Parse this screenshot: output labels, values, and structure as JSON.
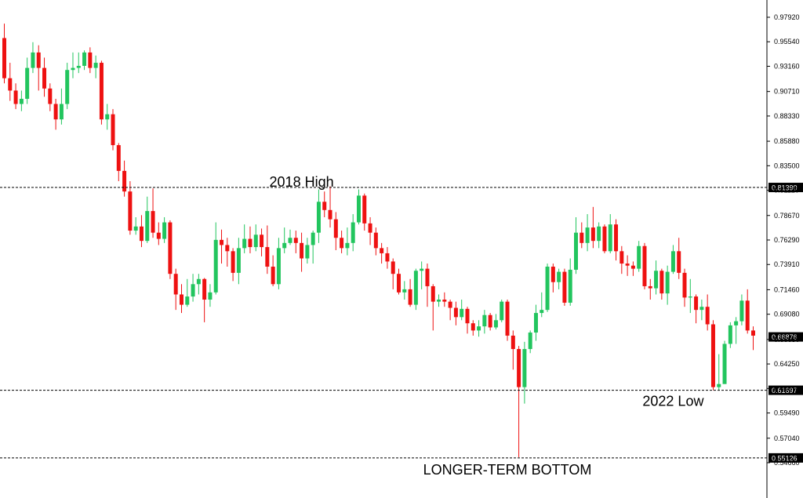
{
  "chart_data": {
    "type": "candlestick",
    "title": "",
    "xlabel": "",
    "ylabel": "",
    "ylim": [
      0.5466,
      0.9849
    ],
    "grid": false,
    "colors": {
      "up": "#22c55e",
      "down": "#ee1111",
      "wick_up": "#22c55e",
      "wick_down": "#ee1111",
      "level_line": "#000000",
      "marker_bg": "#000000",
      "marker_text": "#ffffff"
    },
    "y_ticks": [
      "0.97920",
      "0.95540",
      "0.93160",
      "0.90710",
      "0.88330",
      "0.85880",
      "0.83500",
      "0.81120",
      "0.78670",
      "0.76290",
      "0.73910",
      "0.71460",
      "0.69080",
      "0.66630",
      "0.64250",
      "0.61870",
      "0.59490",
      "0.57040",
      "0.54660"
    ],
    "levels": [
      {
        "value": 0.8139,
        "label": "0.81390",
        "annotation": "2018 High",
        "annotation_x_index": 52
      },
      {
        "value": 0.61697,
        "label": "0.61697",
        "annotation": "2022 Low",
        "annotation_x_index": 117
      },
      {
        "value": 0.55126,
        "label": "0.55126",
        "annotation": "LONGER-TERM BOTTOM",
        "annotation_x_index": 88
      }
    ],
    "current_price": {
      "value": 0.66876,
      "label": "0.66876"
    },
    "candles": [
      [
        0.959,
        0.92,
        0.973,
        0.915
      ],
      [
        0.92,
        0.908,
        0.935,
        0.898
      ],
      [
        0.908,
        0.895,
        0.915,
        0.89
      ],
      [
        0.895,
        0.9,
        0.908,
        0.888
      ],
      [
        0.9,
        0.93,
        0.94,
        0.895
      ],
      [
        0.93,
        0.945,
        0.955,
        0.925
      ],
      [
        0.945,
        0.93,
        0.952,
        0.908
      ],
      [
        0.93,
        0.91,
        0.94,
        0.902
      ],
      [
        0.91,
        0.895,
        0.915,
        0.888
      ],
      [
        0.895,
        0.88,
        0.9,
        0.87
      ],
      [
        0.88,
        0.895,
        0.91,
        0.875
      ],
      [
        0.895,
        0.928,
        0.935,
        0.89
      ],
      [
        0.928,
        0.93,
        0.945,
        0.92
      ],
      [
        0.93,
        0.932,
        0.945,
        0.925
      ],
      [
        0.932,
        0.945,
        0.947,
        0.928
      ],
      [
        0.945,
        0.93,
        0.95,
        0.925
      ],
      [
        0.93,
        0.935,
        0.942,
        0.92
      ],
      [
        0.935,
        0.88,
        0.937,
        0.875
      ],
      [
        0.88,
        0.885,
        0.895,
        0.87
      ],
      [
        0.885,
        0.855,
        0.89,
        0.85
      ],
      [
        0.855,
        0.83,
        0.857,
        0.82
      ],
      [
        0.83,
        0.81,
        0.84,
        0.805
      ],
      [
        0.81,
        0.772,
        0.82,
        0.768
      ],
      [
        0.772,
        0.776,
        0.785,
        0.768
      ],
      [
        0.776,
        0.762,
        0.787,
        0.756
      ],
      [
        0.762,
        0.791,
        0.805,
        0.76
      ],
      [
        0.791,
        0.77,
        0.813,
        0.765
      ],
      [
        0.77,
        0.764,
        0.78,
        0.758
      ],
      [
        0.764,
        0.78,
        0.785,
        0.76
      ],
      [
        0.78,
        0.73,
        0.782,
        0.725
      ],
      [
        0.73,
        0.71,
        0.735,
        0.695
      ],
      [
        0.71,
        0.7,
        0.72,
        0.692
      ],
      [
        0.7,
        0.708,
        0.725,
        0.698
      ],
      [
        0.708,
        0.72,
        0.73,
        0.703
      ],
      [
        0.72,
        0.725,
        0.73,
        0.71
      ],
      [
        0.725,
        0.705,
        0.726,
        0.683
      ],
      [
        0.705,
        0.712,
        0.72,
        0.698
      ],
      [
        0.712,
        0.763,
        0.78,
        0.71
      ],
      [
        0.763,
        0.758,
        0.773,
        0.74
      ],
      [
        0.758,
        0.752,
        0.765,
        0.737
      ],
      [
        0.752,
        0.731,
        0.755,
        0.723
      ],
      [
        0.731,
        0.755,
        0.765,
        0.72
      ],
      [
        0.755,
        0.764,
        0.778,
        0.75
      ],
      [
        0.764,
        0.756,
        0.776,
        0.75
      ],
      [
        0.756,
        0.768,
        0.778,
        0.752
      ],
      [
        0.768,
        0.756,
        0.774,
        0.747
      ],
      [
        0.756,
        0.737,
        0.777,
        0.73
      ],
      [
        0.737,
        0.72,
        0.748,
        0.718
      ],
      [
        0.72,
        0.755,
        0.765,
        0.715
      ],
      [
        0.755,
        0.76,
        0.775,
        0.75
      ],
      [
        0.76,
        0.765,
        0.773,
        0.758
      ],
      [
        0.765,
        0.76,
        0.772,
        0.75
      ],
      [
        0.76,
        0.745,
        0.77,
        0.732
      ],
      [
        0.745,
        0.758,
        0.765,
        0.74
      ],
      [
        0.758,
        0.77,
        0.772,
        0.74
      ],
      [
        0.77,
        0.8,
        0.812,
        0.76
      ],
      [
        0.8,
        0.792,
        0.81,
        0.785
      ],
      [
        0.792,
        0.783,
        0.815,
        0.775
      ],
      [
        0.783,
        0.765,
        0.79,
        0.753
      ],
      [
        0.765,
        0.755,
        0.772,
        0.75
      ],
      [
        0.755,
        0.76,
        0.775,
        0.748
      ],
      [
        0.76,
        0.78,
        0.788,
        0.752
      ],
      [
        0.78,
        0.806,
        0.812,
        0.778
      ],
      [
        0.806,
        0.779,
        0.808,
        0.772
      ],
      [
        0.779,
        0.77,
        0.785,
        0.758
      ],
      [
        0.77,
        0.755,
        0.775,
        0.748
      ],
      [
        0.755,
        0.75,
        0.76,
        0.74
      ],
      [
        0.75,
        0.742,
        0.756,
        0.735
      ],
      [
        0.742,
        0.73,
        0.745,
        0.715
      ],
      [
        0.73,
        0.712,
        0.735,
        0.71
      ],
      [
        0.712,
        0.715,
        0.723,
        0.705
      ],
      [
        0.715,
        0.7,
        0.725,
        0.698
      ],
      [
        0.7,
        0.733,
        0.735,
        0.695
      ],
      [
        0.733,
        0.735,
        0.742,
        0.715
      ],
      [
        0.735,
        0.718,
        0.74,
        0.698
      ],
      [
        0.718,
        0.703,
        0.72,
        0.675
      ],
      [
        0.703,
        0.705,
        0.71,
        0.698
      ],
      [
        0.705,
        0.703,
        0.712,
        0.698
      ],
      [
        0.703,
        0.697,
        0.705,
        0.685
      ],
      [
        0.697,
        0.688,
        0.703,
        0.68
      ],
      [
        0.688,
        0.696,
        0.705,
        0.685
      ],
      [
        0.696,
        0.682,
        0.698,
        0.672
      ],
      [
        0.682,
        0.675,
        0.685,
        0.67
      ],
      [
        0.675,
        0.679,
        0.685,
        0.669
      ],
      [
        0.679,
        0.69,
        0.695,
        0.672
      ],
      [
        0.69,
        0.678,
        0.692,
        0.675
      ],
      [
        0.678,
        0.685,
        0.691,
        0.676
      ],
      [
        0.685,
        0.703,
        0.705,
        0.683
      ],
      [
        0.703,
        0.67,
        0.705,
        0.665
      ],
      [
        0.67,
        0.657,
        0.675,
        0.637
      ],
      [
        0.657,
        0.62,
        0.66,
        0.552
      ],
      [
        0.62,
        0.657,
        0.664,
        0.604
      ],
      [
        0.657,
        0.673,
        0.675,
        0.653
      ],
      [
        0.673,
        0.692,
        0.7,
        0.665
      ],
      [
        0.692,
        0.695,
        0.712,
        0.688
      ],
      [
        0.695,
        0.737,
        0.74,
        0.693
      ],
      [
        0.737,
        0.722,
        0.74,
        0.712
      ],
      [
        0.722,
        0.732,
        0.735,
        0.715
      ],
      [
        0.732,
        0.702,
        0.735,
        0.699
      ],
      [
        0.702,
        0.734,
        0.745,
        0.699
      ],
      [
        0.734,
        0.77,
        0.785,
        0.73
      ],
      [
        0.77,
        0.76,
        0.78,
        0.755
      ],
      [
        0.76,
        0.775,
        0.788,
        0.752
      ],
      [
        0.775,
        0.762,
        0.795,
        0.755
      ],
      [
        0.762,
        0.776,
        0.78,
        0.755
      ],
      [
        0.776,
        0.752,
        0.778,
        0.75
      ],
      [
        0.752,
        0.778,
        0.788,
        0.75
      ],
      [
        0.778,
        0.752,
        0.783,
        0.743
      ],
      [
        0.752,
        0.74,
        0.757,
        0.73
      ],
      [
        0.74,
        0.738,
        0.748,
        0.728
      ],
      [
        0.738,
        0.735,
        0.742,
        0.728
      ],
      [
        0.735,
        0.757,
        0.762,
        0.732
      ],
      [
        0.757,
        0.718,
        0.76,
        0.715
      ],
      [
        0.718,
        0.716,
        0.725,
        0.705
      ],
      [
        0.716,
        0.733,
        0.743,
        0.71
      ],
      [
        0.733,
        0.711,
        0.735,
        0.705
      ],
      [
        0.711,
        0.732,
        0.738,
        0.7
      ],
      [
        0.732,
        0.752,
        0.758,
        0.73
      ],
      [
        0.752,
        0.731,
        0.765,
        0.725
      ],
      [
        0.731,
        0.707,
        0.735,
        0.698
      ],
      [
        0.707,
        0.708,
        0.725,
        0.692
      ],
      [
        0.708,
        0.695,
        0.71,
        0.682
      ],
      [
        0.695,
        0.698,
        0.705,
        0.685
      ],
      [
        0.698,
        0.681,
        0.71,
        0.675
      ],
      [
        0.681,
        0.62,
        0.685,
        0.617
      ],
      [
        0.62,
        0.623,
        0.652,
        0.617
      ],
      [
        0.623,
        0.662,
        0.665,
        0.627
      ],
      [
        0.662,
        0.68,
        0.683,
        0.658
      ],
      [
        0.68,
        0.684,
        0.688,
        0.662
      ],
      [
        0.684,
        0.704,
        0.71,
        0.68
      ],
      [
        0.704,
        0.675,
        0.715,
        0.672
      ],
      [
        0.675,
        0.67,
        0.679,
        0.656
      ]
    ]
  }
}
